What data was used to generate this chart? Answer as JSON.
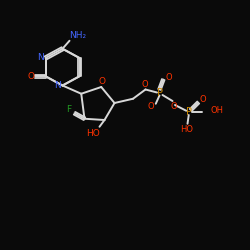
{
  "background": "#0a0a0a",
  "bond_color": "#d8d8d8",
  "colors": {
    "N": "#4466ff",
    "O": "#ff3300",
    "F": "#229922",
    "P": "#cc8800",
    "bond": "#d8d8d8"
  },
  "figsize": [
    2.5,
    2.5
  ],
  "dpi": 100,
  "xlim": [
    0,
    10
  ],
  "ylim": [
    0,
    10
  ]
}
